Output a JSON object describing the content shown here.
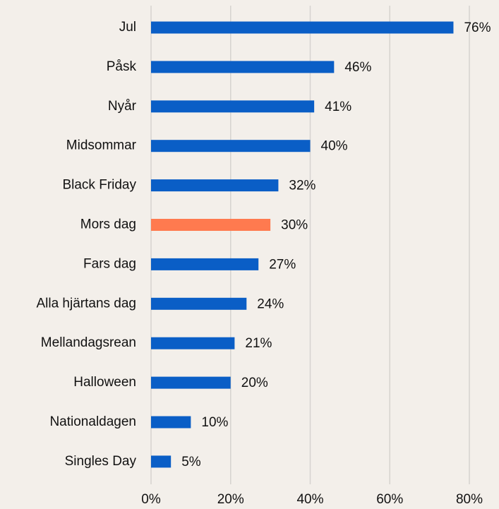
{
  "chart_data": {
    "type": "barh",
    "categories": [
      "Jul",
      "Påsk",
      "Nyår",
      "Midsommar",
      "Black Friday",
      "Mors dag",
      "Fars dag",
      "Alla hjärtans dag",
      "Mellandagsrean",
      "Halloween",
      "Nationaldagen",
      "Singles Day"
    ],
    "values": [
      76,
      46,
      41,
      40,
      32,
      30,
      27,
      24,
      21,
      20,
      10,
      5
    ],
    "value_labels": [
      "76%",
      "46%",
      "41%",
      "40%",
      "32%",
      "30%",
      "27%",
      "24%",
      "21%",
      "20%",
      "10%",
      "5%"
    ],
    "colors": [
      "#0a5ec6",
      "#0a5ec6",
      "#0a5ec6",
      "#0a5ec6",
      "#0a5ec6",
      "#ff7a4f",
      "#0a5ec6",
      "#0a5ec6",
      "#0a5ec6",
      "#0a5ec6",
      "#0a5ec6",
      "#0a5ec6"
    ],
    "xlim": [
      0,
      80
    ],
    "xticks": [
      {
        "value": 0,
        "label": "0%"
      },
      {
        "value": 20,
        "label": "20%"
      },
      {
        "value": 40,
        "label": "40%"
      },
      {
        "value": 60,
        "label": "60%"
      },
      {
        "value": 80,
        "label": "80%"
      }
    ],
    "grid": true
  }
}
